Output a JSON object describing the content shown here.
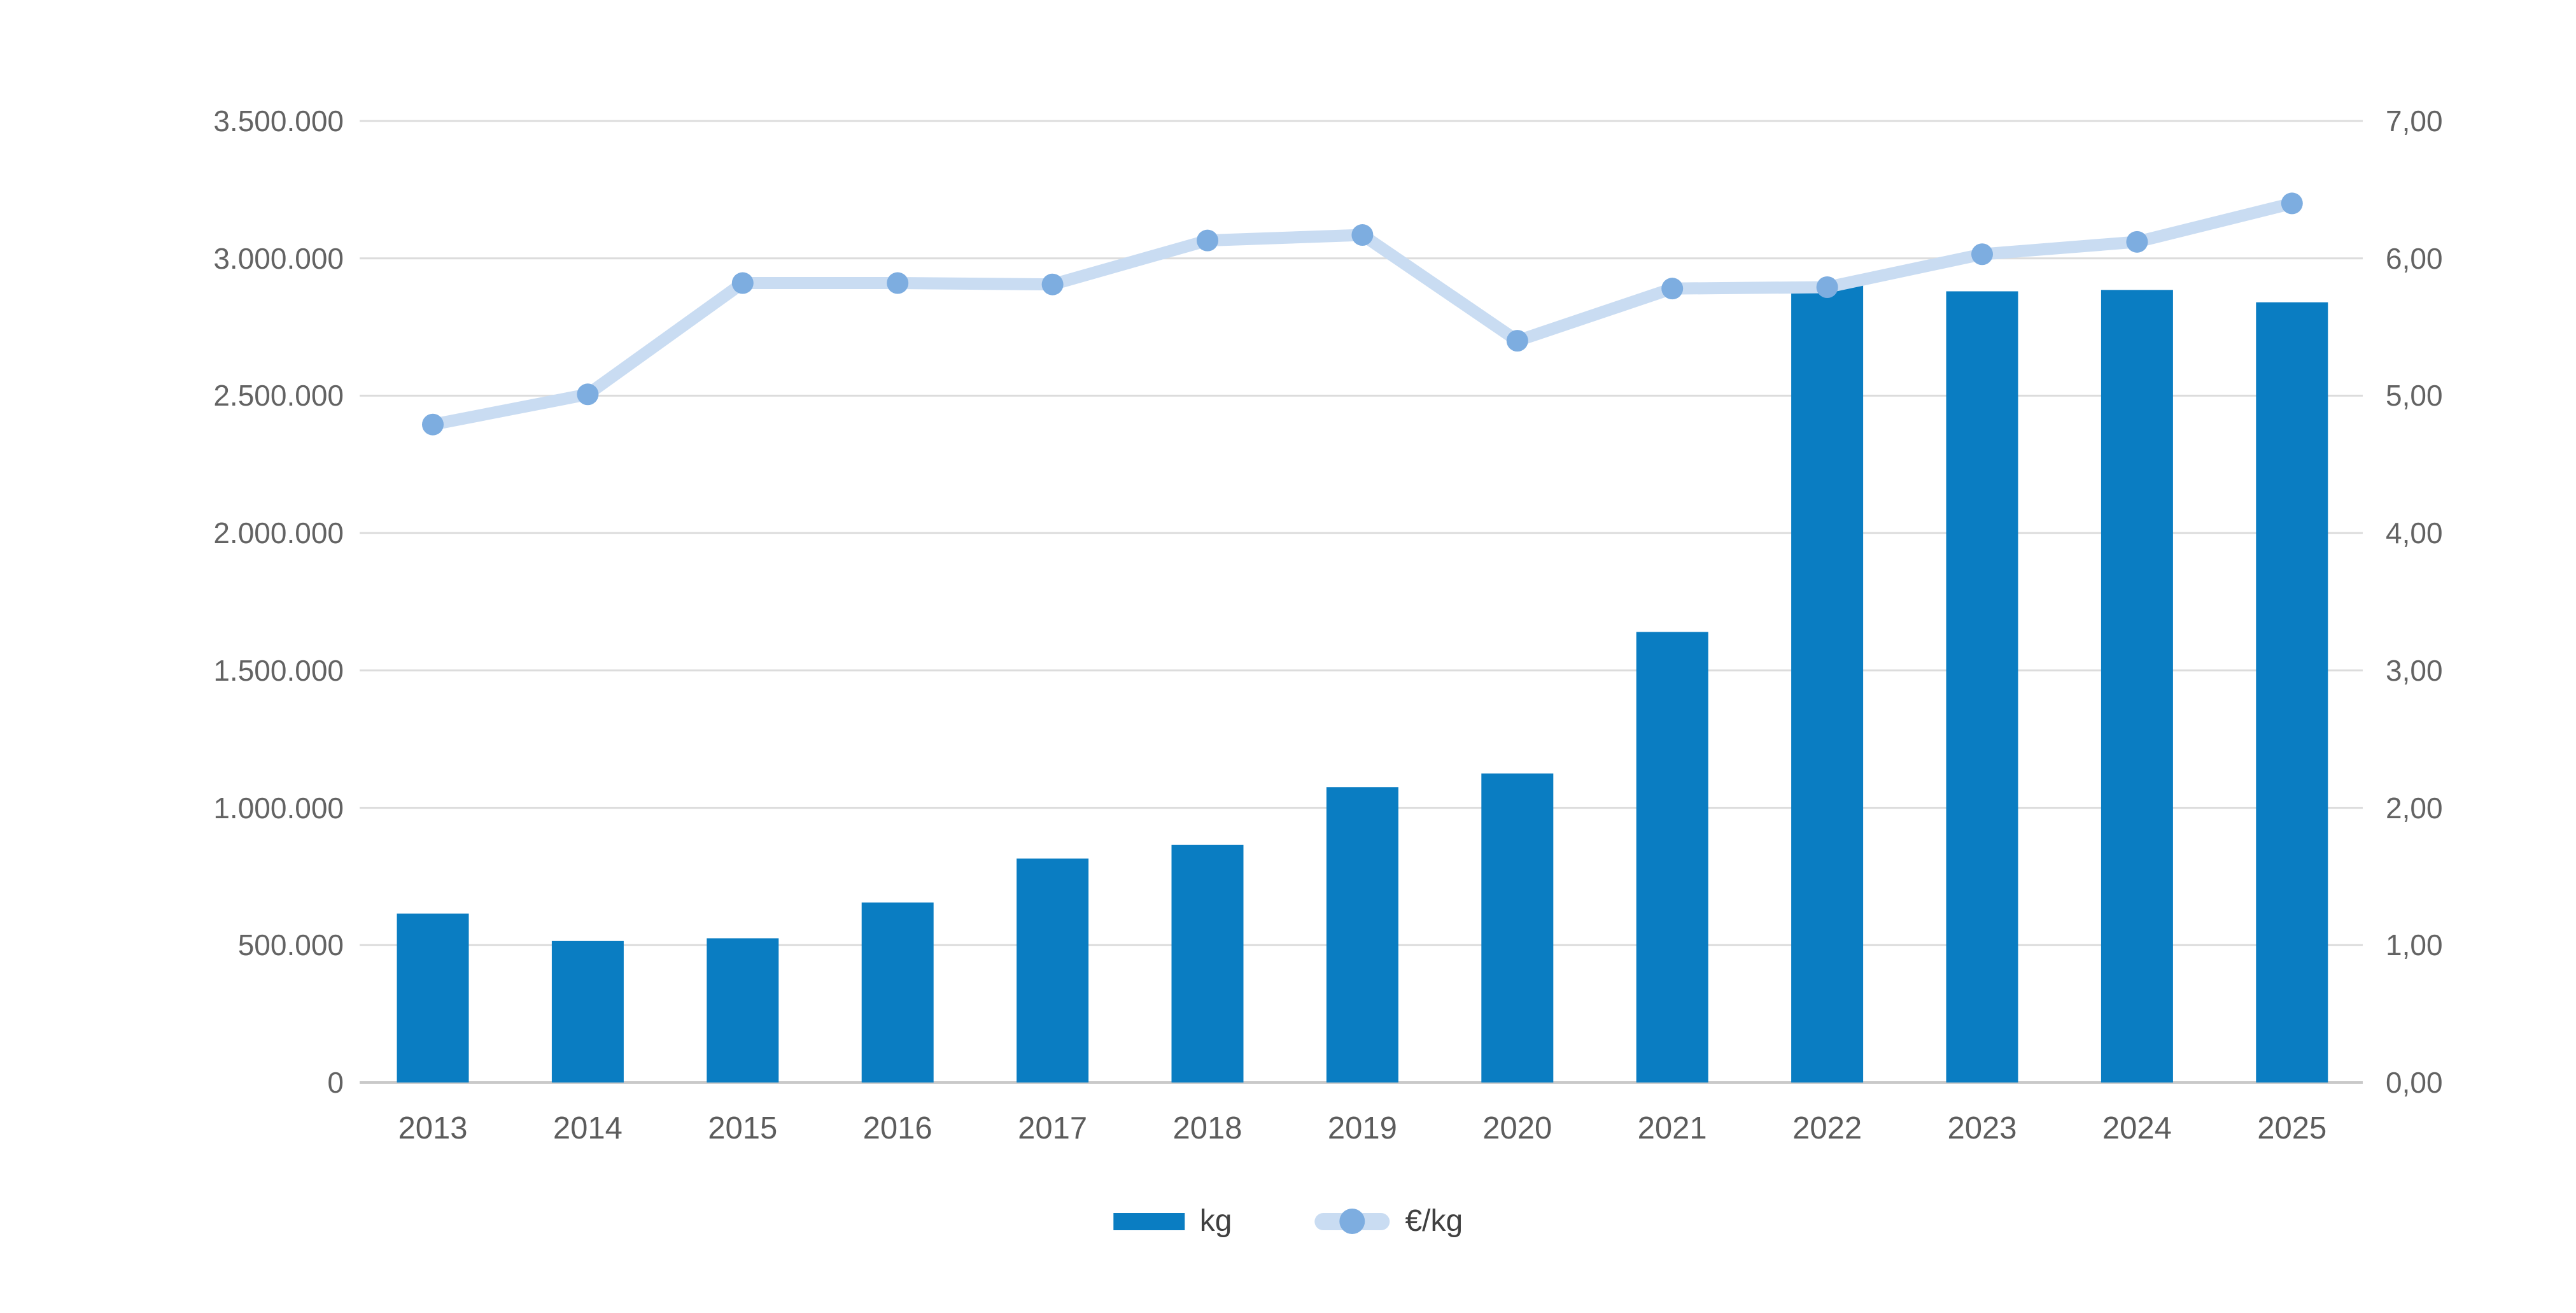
{
  "chart_data": {
    "type": "combo",
    "title": "",
    "categories": [
      "2013",
      "2014",
      "2015",
      "2016",
      "2017",
      "2018",
      "2019",
      "2020",
      "2021",
      "2022",
      "2023",
      "2024",
      "2025"
    ],
    "series": [
      {
        "name": "kg",
        "type": "bar",
        "axis": "left",
        "values": [
          615000,
          515000,
          525000,
          655000,
          815000,
          865000,
          1075000,
          1125000,
          1640000,
          2915000,
          2880000,
          2885000,
          2840000
        ]
      },
      {
        "name": "€/kg",
        "type": "line",
        "axis": "right",
        "values": [
          4.79,
          5.01,
          5.82,
          5.82,
          5.81,
          6.13,
          6.17,
          5.4,
          5.78,
          5.79,
          6.03,
          6.12,
          6.4
        ]
      }
    ],
    "left_axis": {
      "min": 0,
      "max": 3500000,
      "step": 500000,
      "tick_labels": [
        "0",
        "500.000",
        "1.000.000",
        "1.500.000",
        "2.000.000",
        "2.500.000",
        "3.000.000",
        "3.500.000"
      ]
    },
    "right_axis": {
      "min": 0,
      "max": 7,
      "step": 1,
      "tick_labels": [
        "0,00",
        "1,00",
        "2,00",
        "3,00",
        "4,00",
        "5,00",
        "6,00",
        "7,00"
      ]
    },
    "legend": {
      "position": "bottom-center",
      "items": [
        {
          "label": "kg"
        },
        {
          "label": "€/kg"
        }
      ]
    },
    "grid": true,
    "colors": {
      "bar": "#0a7dc2",
      "line": "#c9dcf2",
      "marker": "#7dade0",
      "gridline": "#dcdcdc",
      "baseline": "#c9c9c9",
      "axis_text": "#636363",
      "legend_text": "#404040",
      "background": "#ffffff"
    }
  }
}
